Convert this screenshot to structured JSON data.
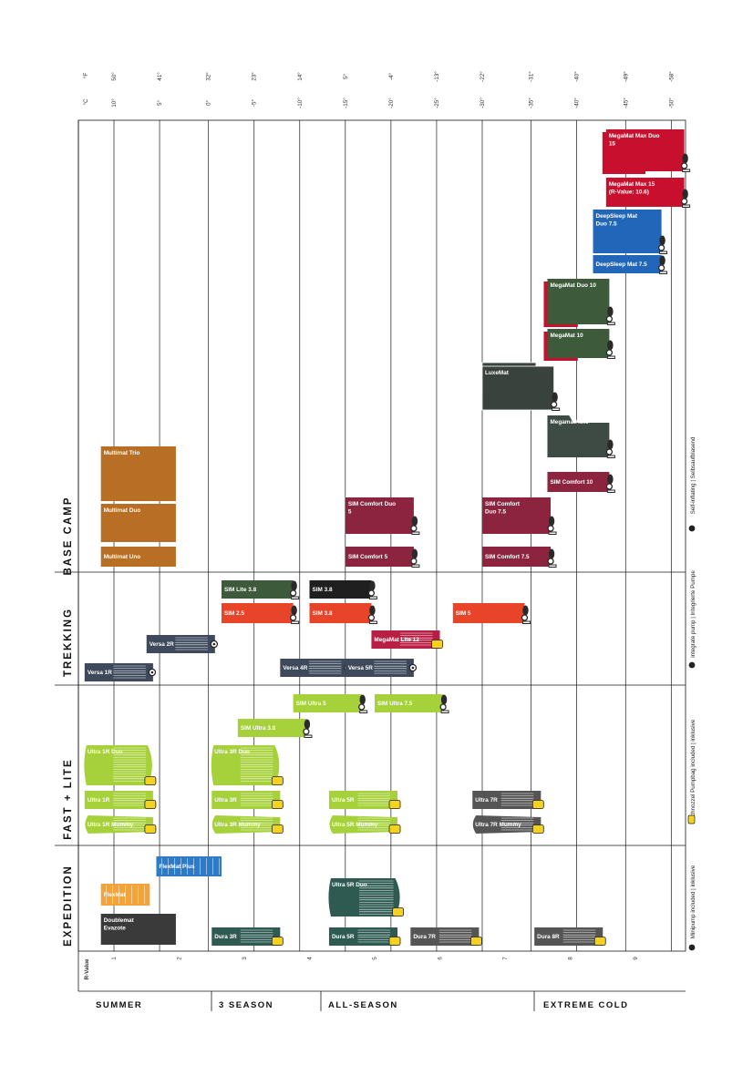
{
  "chart_data": {
    "type": "bar",
    "title": "",
    "x_label": "R-Value",
    "x_ticks": [
      "1",
      "2",
      "3",
      "4",
      "5",
      "6",
      "7",
      "8",
      "9"
    ],
    "xlim": [
      0.5,
      9.8
    ],
    "celsius_label": "°C",
    "fahrenheit_label": "°F",
    "temps": [
      {
        "r": 1.0,
        "c": "10°",
        "f": "50°"
      },
      {
        "r": 1.7,
        "c": "5°",
        "f": "41°"
      },
      {
        "r": 2.45,
        "c": "0°",
        "f": "32°"
      },
      {
        "r": 3.15,
        "c": "-5°",
        "f": "23°"
      },
      {
        "r": 3.85,
        "c": "-10°",
        "f": "14°"
      },
      {
        "r": 4.55,
        "c": "-15°",
        "f": "5°"
      },
      {
        "r": 5.25,
        "c": "-20°",
        "f": "-4°"
      },
      {
        "r": 5.95,
        "c": "-25°",
        "f": "-13°"
      },
      {
        "r": 6.65,
        "c": "-30°",
        "f": "-22°"
      },
      {
        "r": 7.4,
        "c": "-35°",
        "f": "-31°"
      },
      {
        "r": 8.1,
        "c": "-40°",
        "f": "-40°"
      },
      {
        "r": 8.85,
        "c": "-45°",
        "f": "-49°"
      },
      {
        "r": 9.55,
        "c": "-50°",
        "f": "-58°"
      }
    ],
    "categories": [
      "BASE CAMP",
      "TREKKING",
      "FAST + LITE",
      "EXPEDITION"
    ],
    "seasons": [
      {
        "label": "SUMMER",
        "from": 0.5,
        "to": 2.5
      },
      {
        "label": "3 SEASON",
        "from": 2.5,
        "to": 4.2
      },
      {
        "label": "ALL-SEASON",
        "from": 4.2,
        "to": 7.5
      },
      {
        "label": "EXTREME COLD",
        "from": 7.5,
        "to": 9.8
      }
    ],
    "products": [
      {
        "name": "MegaMat Max Duo 15",
        "category": "BASE CAMP",
        "r_from": 8.55,
        "r_to": 9.75,
        "color": "#c8102e",
        "type": "self-inflating",
        "shape": "duo-red"
      },
      {
        "name": "MegaMat Max 15 (R-Value: 10.6)",
        "category": "BASE CAMP",
        "r_from": 8.55,
        "r_to": 9.75,
        "color": "#c8102e",
        "type": "self-inflating",
        "shape": "plain"
      },
      {
        "name": "DeepSleep Mat Duo 7.5",
        "category": "BASE CAMP",
        "r_from": 8.35,
        "r_to": 9.4,
        "color": "#2166b8",
        "type": "self-inflating",
        "shape": "tall"
      },
      {
        "name": "DeepSleep Mat 7.5",
        "category": "BASE CAMP",
        "r_from": 8.35,
        "r_to": 9.4,
        "color": "#2166b8",
        "type": "self-inflating",
        "shape": "plain"
      },
      {
        "name": "MegaMat Duo 10",
        "category": "BASE CAMP",
        "r_from": 7.65,
        "r_to": 8.6,
        "color": "#3d5a3a",
        "type": "self-inflating",
        "shape": "duo-red"
      },
      {
        "name": "MegaMat  10",
        "category": "BASE CAMP",
        "r_from": 7.65,
        "r_to": 8.6,
        "color": "#3d5a3a",
        "type": "self-inflating",
        "shape": "duo-red"
      },
      {
        "name": "LuxeMat",
        "category": "BASE CAMP",
        "r_from": 6.65,
        "r_to": 7.75,
        "color": "#3a423d",
        "type": "self-inflating",
        "shape": "stack"
      },
      {
        "name": "MegamatAuto",
        "category": "BASE CAMP",
        "r_from": 7.65,
        "r_to": 8.6,
        "color": "#3d4b44",
        "type": "self-inflating",
        "shape": "notch"
      },
      {
        "name": "SIM Comfort 10",
        "category": "BASE CAMP",
        "r_from": 7.65,
        "r_to": 8.6,
        "color": "#8c2440",
        "type": "self-inflating",
        "shape": "plain"
      },
      {
        "name": "SIM Comfort Duo 5",
        "category": "BASE CAMP",
        "r_from": 4.55,
        "r_to": 5.6,
        "color": "#8c2440",
        "type": "self-inflating",
        "shape": "tall"
      },
      {
        "name": "SIM Comfort  Duo 7.5",
        "category": "BASE CAMP",
        "r_from": 6.65,
        "r_to": 7.7,
        "color": "#8c2440",
        "type": "self-inflating",
        "shape": "tall"
      },
      {
        "name": "SIM Comfort 5",
        "category": "BASE CAMP",
        "r_from": 4.55,
        "r_to": 5.6,
        "color": "#8c2440",
        "type": "self-inflating",
        "shape": "plain"
      },
      {
        "name": "SIM Comfort 7.5",
        "category": "BASE CAMP",
        "r_from": 6.65,
        "r_to": 7.7,
        "color": "#8c2440",
        "type": "self-inflating",
        "shape": "plain"
      },
      {
        "name": "Multimat Trio",
        "category": "BASE CAMP",
        "r_from": 0.8,
        "r_to": 1.95,
        "color": "#b86f25",
        "type": "foam",
        "shape": "tall"
      },
      {
        "name": "Multimat Duo",
        "category": "BASE CAMP",
        "r_from": 0.8,
        "r_to": 1.95,
        "color": "#b86f25",
        "type": "foam",
        "shape": "mid"
      },
      {
        "name": "Multimat Uno",
        "category": "BASE CAMP",
        "r_from": 0.8,
        "r_to": 1.95,
        "color": "#b86f25",
        "type": "foam",
        "shape": "plain"
      },
      {
        "name": "SIM Lite 3.8",
        "category": "TREKKING",
        "r_from": 2.65,
        "r_to": 3.75,
        "color": "#3d5a3a",
        "type": "self-inflating",
        "shape": "plain"
      },
      {
        "name": "SIM 3.8",
        "category": "TREKKING",
        "r_from": 4.0,
        "r_to": 4.95,
        "color": "#1f1f1f",
        "type": "self-inflating",
        "shape": "plain"
      },
      {
        "name": "SIM 2.5",
        "category": "TREKKING",
        "r_from": 2.65,
        "r_to": 3.75,
        "color": "#e8442a",
        "type": "self-inflating",
        "shape": "plain"
      },
      {
        "name": "SIM 3.8",
        "category": "TREKKING",
        "r_from": 4.0,
        "r_to": 4.95,
        "color": "#e8442a",
        "type": "self-inflating",
        "shape": "plain"
      },
      {
        "name": "SIM 5",
        "category": "TREKKING",
        "r_from": 6.2,
        "r_to": 7.3,
        "color": "#e8442a",
        "type": "self-inflating",
        "shape": "plain"
      },
      {
        "name": "MegaMat Lite 12",
        "category": "TREKKING",
        "r_from": 4.95,
        "r_to": 6.0,
        "color": "#b81f45",
        "type": "air",
        "shape": "lined"
      },
      {
        "name": "Versa 2R",
        "category": "TREKKING",
        "r_from": 1.5,
        "r_to": 2.55,
        "color": "#3e4a5c",
        "type": "air",
        "shape": "lined"
      },
      {
        "name": "Versa 4R",
        "category": "TREKKING",
        "r_from": 3.55,
        "r_to": 4.6,
        "color": "#3e4a5c",
        "type": "air",
        "shape": "lined"
      },
      {
        "name": "Versa 5R",
        "category": "TREKKING",
        "r_from": 4.55,
        "r_to": 5.6,
        "color": "#3e4a5c",
        "type": "air",
        "shape": "lined"
      },
      {
        "name": "Versa 1R",
        "category": "TREKKING",
        "r_from": 0.55,
        "r_to": 1.6,
        "color": "#3e4a5c",
        "type": "air",
        "shape": "lined"
      },
      {
        "name": "SIM Ultra 5",
        "category": "FAST + LITE",
        "r_from": 3.75,
        "r_to": 4.8,
        "color": "#a6d13a",
        "type": "self-inflating",
        "shape": "plain"
      },
      {
        "name": "SIM Ultra 7.5",
        "category": "FAST + LITE",
        "r_from": 5.0,
        "r_to": 6.05,
        "color": "#a6d13a",
        "type": "self-inflating",
        "shape": "plain"
      },
      {
        "name": "SIM Ultra 3.8",
        "category": "FAST + LITE",
        "r_from": 2.9,
        "r_to": 3.95,
        "color": "#a6d13a",
        "type": "self-inflating",
        "shape": "plain"
      },
      {
        "name": "Ultra 1R Duo",
        "category": "FAST + LITE",
        "r_from": 0.55,
        "r_to": 1.6,
        "color": "#a6d13a",
        "type": "air",
        "shape": "duo-air"
      },
      {
        "name": "Ultra 3R Duo",
        "category": "FAST + LITE",
        "r_from": 2.5,
        "r_to": 3.55,
        "color": "#a6d13a",
        "type": "air",
        "shape": "duo-air"
      },
      {
        "name": "Ultra 1R",
        "category": "FAST + LITE",
        "r_from": 0.55,
        "r_to": 1.6,
        "color": "#a6d13a",
        "type": "air",
        "shape": "lined"
      },
      {
        "name": "Ultra 3R",
        "category": "FAST + LITE",
        "r_from": 2.5,
        "r_to": 3.55,
        "color": "#a6d13a",
        "type": "air",
        "shape": "lined"
      },
      {
        "name": "Ultra 5R",
        "category": "FAST + LITE",
        "r_from": 4.3,
        "r_to": 5.35,
        "color": "#a6d13a",
        "type": "air",
        "shape": "lined"
      },
      {
        "name": "Ultra 7R",
        "category": "FAST + LITE",
        "r_from": 6.5,
        "r_to": 7.55,
        "color": "#555555",
        "type": "air",
        "shape": "lined"
      },
      {
        "name": "Ultra 1R Mummy",
        "category": "FAST + LITE",
        "r_from": 0.55,
        "r_to": 1.6,
        "color": "#a6d13a",
        "type": "air",
        "shape": "mummy"
      },
      {
        "name": "Ultra 3R Mummy",
        "category": "FAST + LITE",
        "r_from": 2.5,
        "r_to": 3.55,
        "color": "#a6d13a",
        "type": "air",
        "shape": "mummy"
      },
      {
        "name": "Ultra 5R Mummy",
        "category": "FAST + LITE",
        "r_from": 4.3,
        "r_to": 5.35,
        "color": "#a6d13a",
        "type": "air",
        "shape": "mummy"
      },
      {
        "name": "Ultra 7R Mummy",
        "category": "FAST + LITE",
        "r_from": 6.5,
        "r_to": 7.55,
        "color": "#555555",
        "type": "air",
        "shape": "mummy"
      },
      {
        "name": "FlexMat Plus",
        "category": "EXPEDITION",
        "r_from": 1.65,
        "r_to": 2.65,
        "color": "#2f7ac4",
        "type": "foam",
        "shape": "ribbed"
      },
      {
        "name": "FlexMat",
        "category": "EXPEDITION",
        "r_from": 0.8,
        "r_to": 1.55,
        "color": "#f2a33a",
        "type": "foam",
        "shape": "ribbed"
      },
      {
        "name": "Ultra 5R Duo",
        "category": "EXPEDITION",
        "r_from": 4.3,
        "r_to": 5.4,
        "color": "#2e5a52",
        "type": "air",
        "shape": "duo-air"
      },
      {
        "name": "Doublemat Evazote",
        "category": "EXPEDITION",
        "r_from": 0.8,
        "r_to": 1.95,
        "color": "#3a3a3a",
        "type": "foam",
        "shape": "tall"
      },
      {
        "name": "Dura 3R",
        "category": "EXPEDITION",
        "r_from": 2.5,
        "r_to": 3.55,
        "color": "#2e5a52",
        "type": "air",
        "shape": "lined"
      },
      {
        "name": "Dura 5R",
        "category": "EXPEDITION",
        "r_from": 4.3,
        "r_to": 5.35,
        "color": "#2e5a52",
        "type": "air",
        "shape": "lined"
      },
      {
        "name": "Dura 7R",
        "category": "EXPEDITION",
        "r_from": 5.55,
        "r_to": 6.6,
        "color": "#555555",
        "type": "air",
        "shape": "lined"
      },
      {
        "name": "Dura 8R",
        "category": "EXPEDITION",
        "r_from": 7.45,
        "r_to": 8.5,
        "color": "#555555",
        "type": "air",
        "shape": "lined"
      }
    ],
    "legend": [
      {
        "label": "Self-inflating | Selbsaufblasend",
        "icon": "valve-icon"
      },
      {
        "label": "integrate pump | Integrierte Pumpe",
        "icon": "pump-icon"
      },
      {
        "label": "Schnozzel Pumpbag included | inklusive",
        "icon": "pumpbag-icon"
      },
      {
        "label": "Minipump included | inklusive",
        "icon": "minipump-icon"
      }
    ],
    "colors": {
      "grid": "#1a1a1a",
      "self_inflating_valve": "#2a2a2a",
      "pumpbag": "#f4d21f"
    }
  }
}
